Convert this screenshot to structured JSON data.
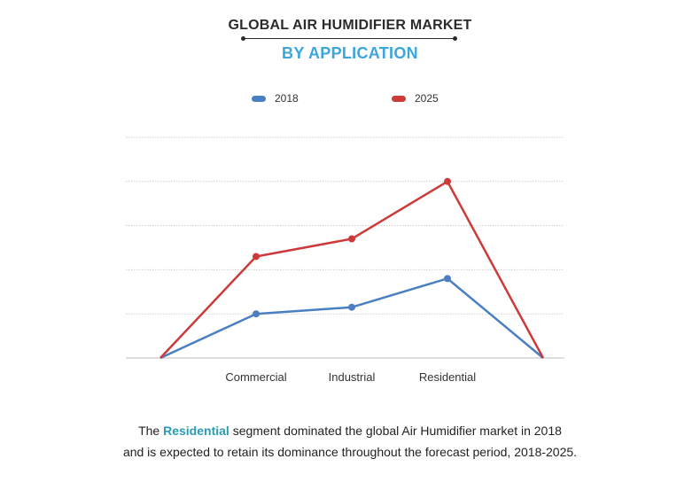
{
  "header": {
    "title": "GLOBAL AIR HUMIDIFIER MARKET",
    "subtitle": "BY APPLICATION"
  },
  "chart_data": {
    "type": "line",
    "categories": [
      "",
      "Commercial",
      "Industrial",
      "Residential",
      ""
    ],
    "series": [
      {
        "name": "2018",
        "color": "#4a7fc1",
        "values": [
          0,
          1.0,
          1.15,
          1.8,
          0
        ]
      },
      {
        "name": "2025",
        "color": "#cd3a3a",
        "values": [
          0,
          2.3,
          2.7,
          4.0,
          0
        ]
      }
    ],
    "ylim": [
      0,
      5
    ],
    "grid": true,
    "legend": "top-center",
    "title": "",
    "xlabel": "",
    "ylabel": ""
  },
  "caption": {
    "prefix": "The ",
    "highlight": "Residential",
    "line1_rest": " segment dominated the global Air Humidifier  market in 2018",
    "line2": "and is expected to retain its dominance throughout the forecast period, 2018-2025."
  }
}
